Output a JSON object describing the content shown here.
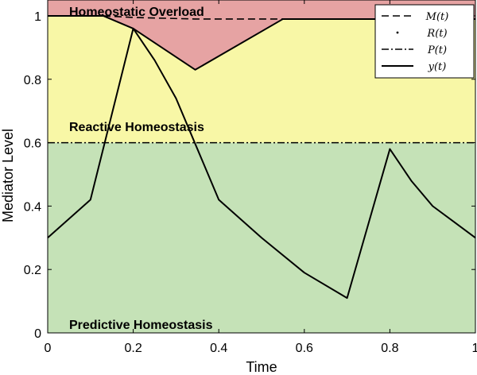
{
  "chart_data": {
    "type": "line",
    "xlabel": "Time",
    "ylabel": "Mediator Level",
    "xlim": [
      0,
      1
    ],
    "ylim": [
      0,
      1.05
    ],
    "xticks": [
      "0",
      "0.2",
      "0.4",
      "0.6",
      "0.8",
      "1"
    ],
    "yticks": [
      "0",
      "0.2",
      "0.4",
      "0.6",
      "0.8",
      "1"
    ],
    "zones": [
      {
        "label": "Homeostatic Overload",
        "color": "#e6a3a3",
        "range": [
          "M",
          1.05
        ]
      },
      {
        "label": "Reactive Homeostasis",
        "color": "#f8f7a6",
        "range": [
          0.6,
          "M"
        ]
      },
      {
        "label": "Predictive Homeostasis",
        "color": "#c5e2b7",
        "range": [
          0,
          0.6
        ]
      }
    ],
    "series": [
      {
        "name": "M(t)",
        "style": "dashed",
        "x": [
          0,
          0.13,
          0.2,
          0.345,
          0.55,
          1
        ],
        "y": [
          1,
          1,
          0.995,
          0.99,
          0.99,
          0.99
        ]
      },
      {
        "name": "R(t)",
        "style": "dotted",
        "x": [
          0,
          0.13,
          0.2,
          0.345,
          0.55,
          1
        ],
        "y": [
          1,
          1,
          0.96,
          0.83,
          0.99,
          0.99
        ]
      },
      {
        "name": "P(t)",
        "style": "dashdot",
        "x": [
          0,
          1
        ],
        "y": [
          0.6,
          0.6
        ]
      },
      {
        "name": "y(t)",
        "style": "solid",
        "x": [
          0,
          0.1,
          0.2,
          0.25,
          0.3,
          0.35,
          0.4,
          0.5,
          0.6,
          0.7,
          0.8,
          0.85,
          0.9,
          0.95,
          1
        ],
        "y": [
          0.3,
          0.42,
          0.96,
          0.86,
          0.74,
          0.58,
          0.42,
          0.3,
          0.19,
          0.11,
          0.58,
          0.48,
          0.4,
          0.35,
          0.3
        ]
      }
    ],
    "legend_position": "top-right"
  }
}
